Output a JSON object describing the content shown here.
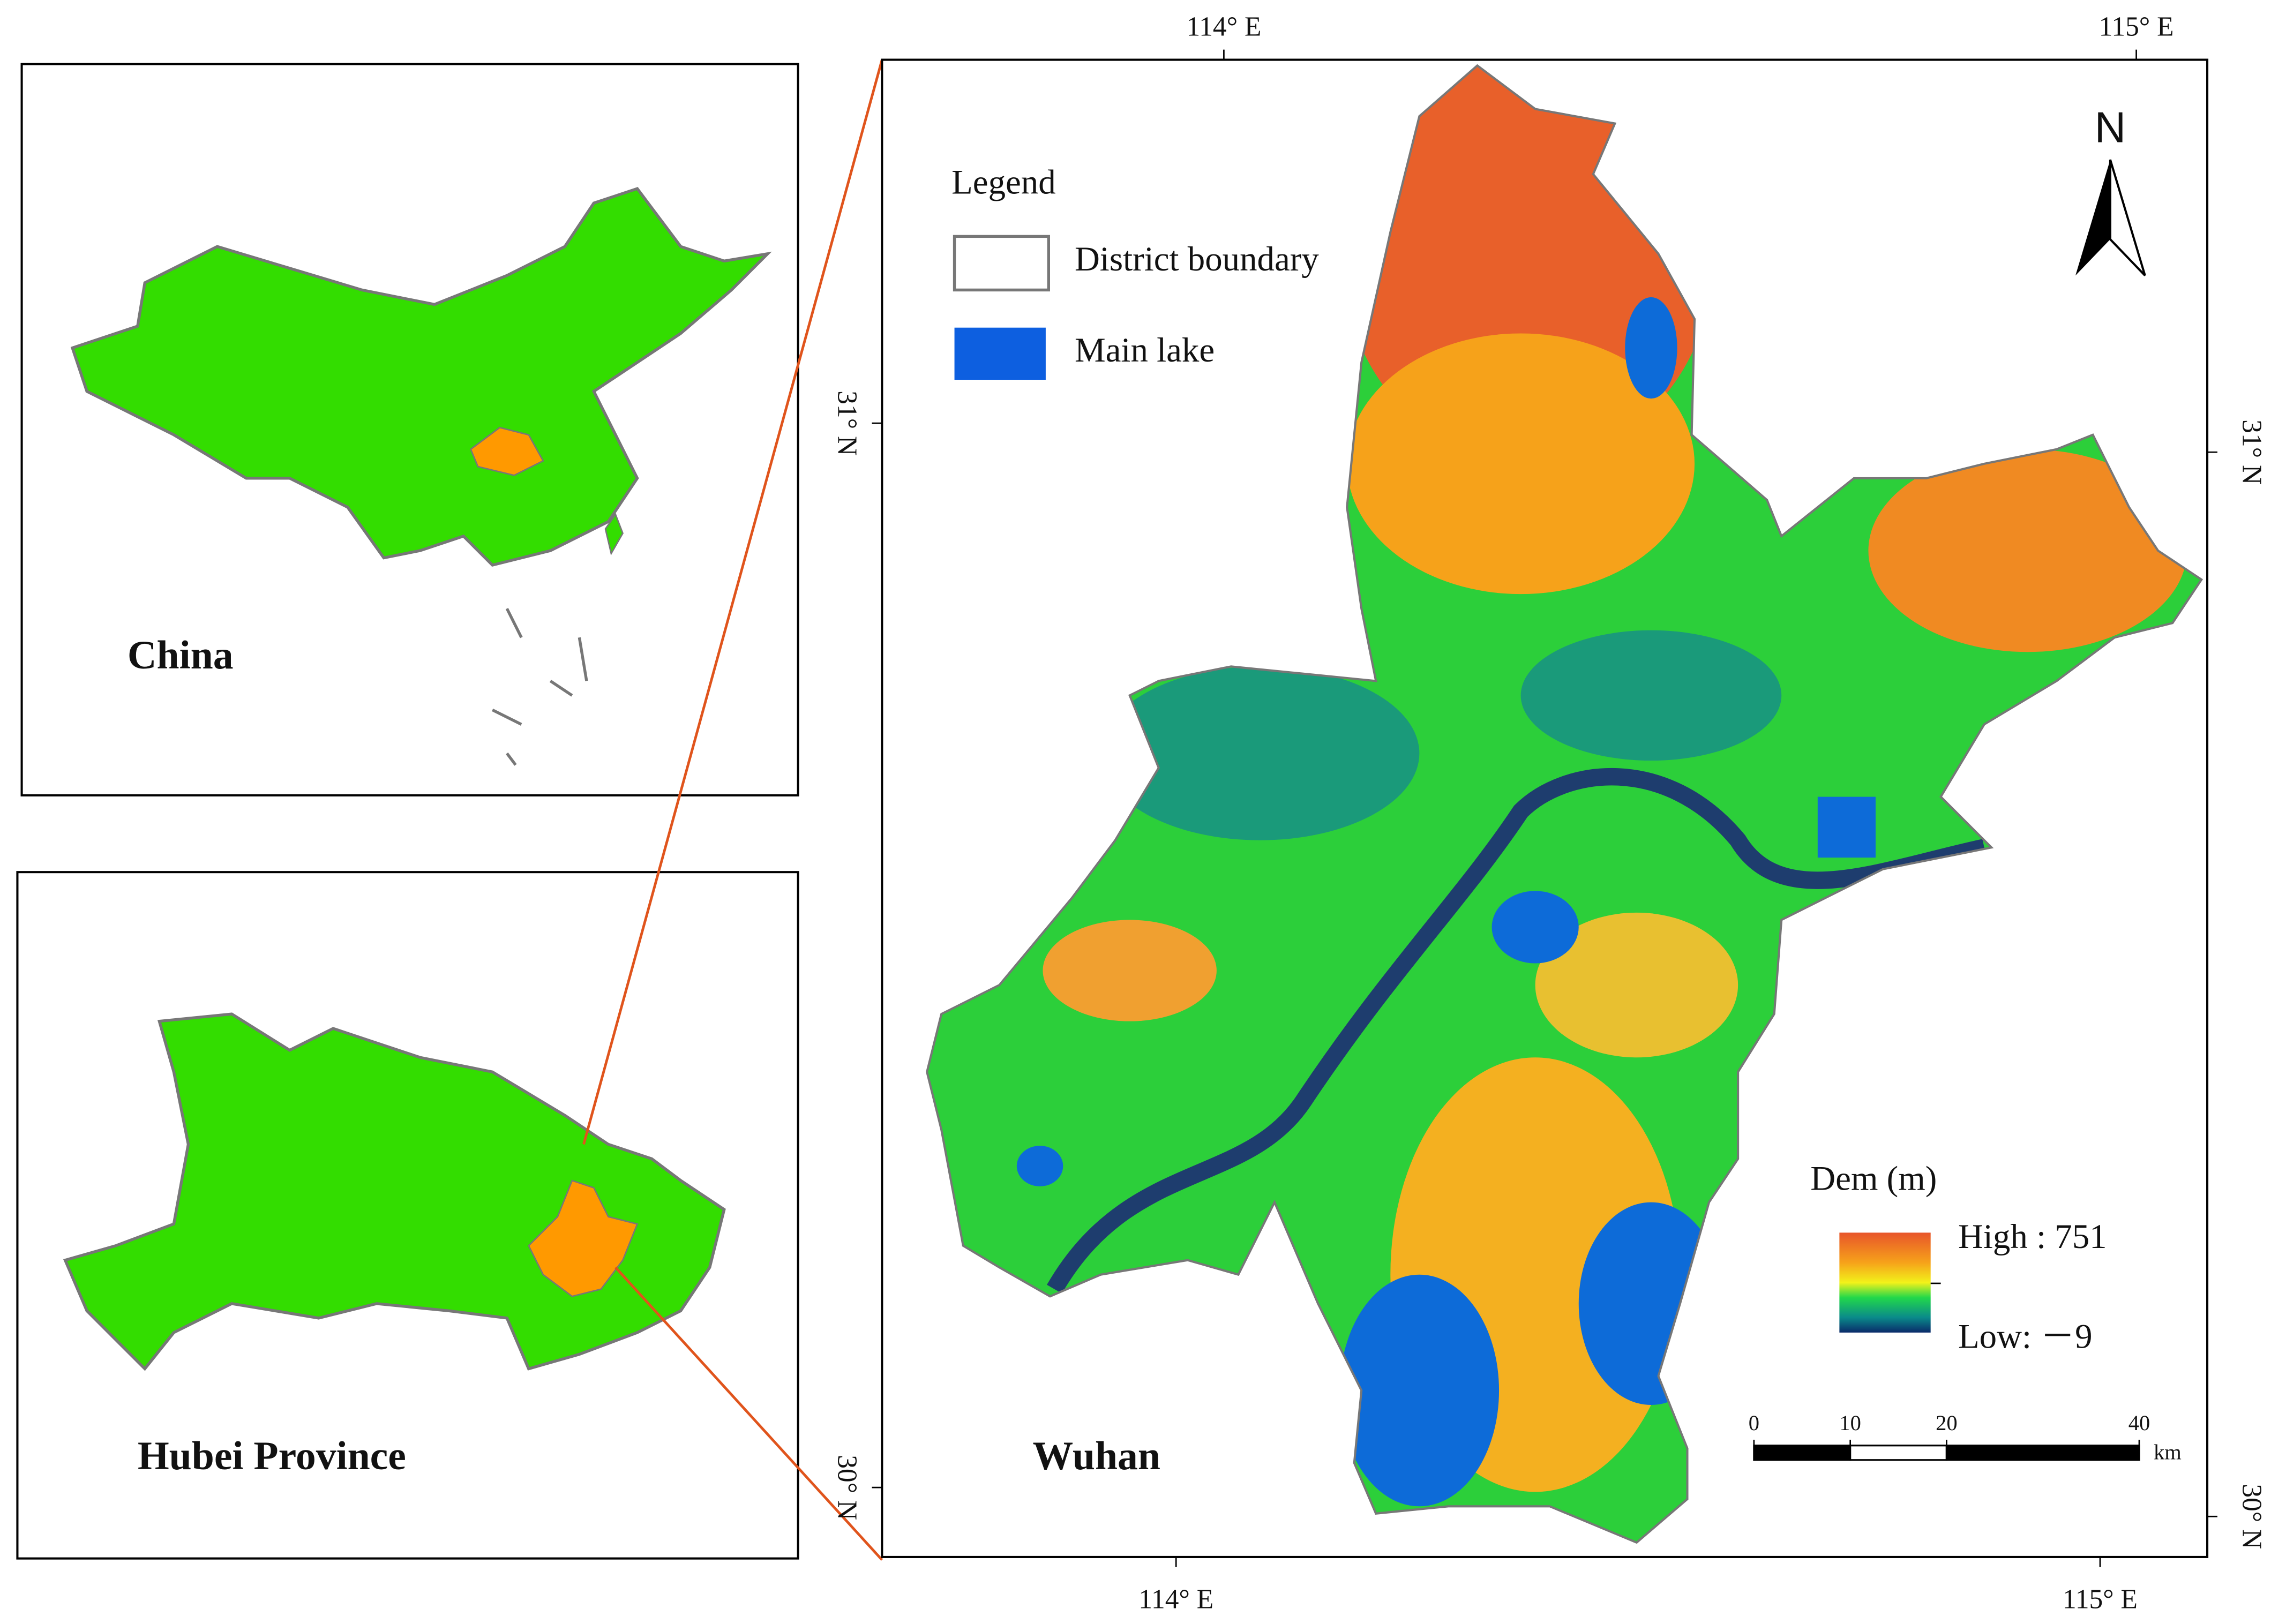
{
  "coordinates": {
    "top": [
      "114° E",
      "115° E"
    ],
    "bottom": [
      "114° E",
      "115° E"
    ],
    "left": [
      "31° N",
      "30° N"
    ],
    "right": [
      "31° N",
      "30° N"
    ]
  },
  "legend": {
    "title": "Legend",
    "items": [
      "District boundary",
      "Main lake"
    ]
  },
  "insets": {
    "china": "China",
    "hubei": "Hubei Province"
  },
  "map": {
    "title": "Wuhan",
    "north": "N"
  },
  "dem": {
    "title": "Dem (m)",
    "high": "High : 751",
    "low": "Low: －9"
  },
  "scale_bar": {
    "labels": [
      0,
      10,
      20,
      40
    ],
    "unit": "km"
  }
}
